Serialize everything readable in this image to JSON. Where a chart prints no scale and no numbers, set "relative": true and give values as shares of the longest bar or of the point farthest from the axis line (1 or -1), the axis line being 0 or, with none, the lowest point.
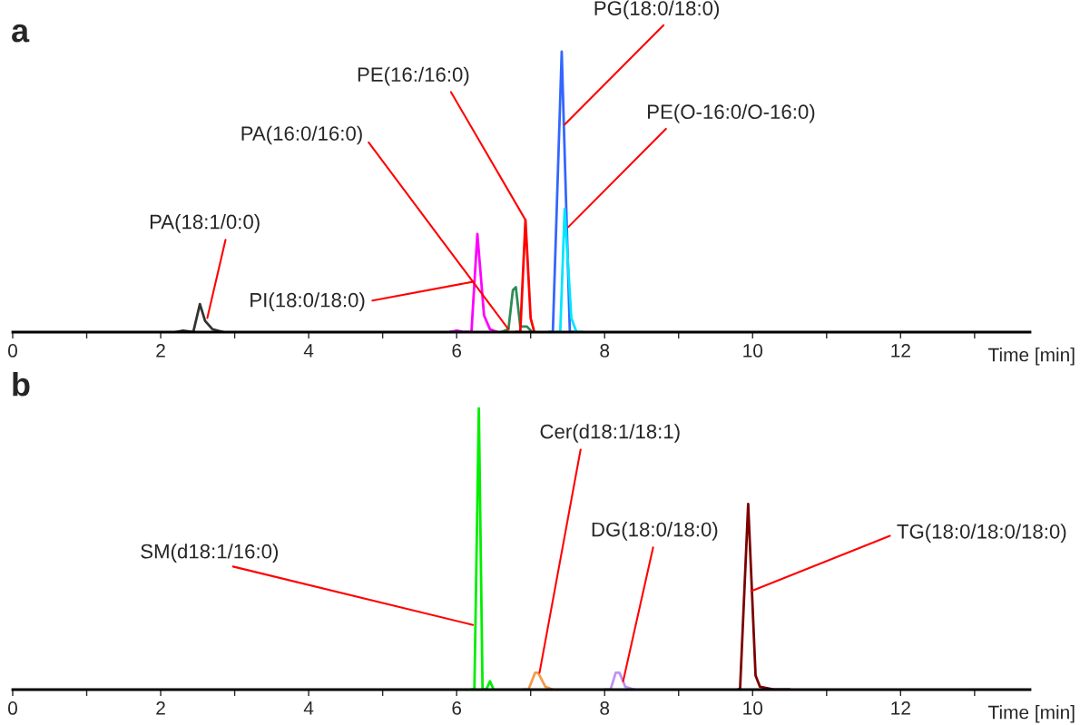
{
  "chart_data": [
    {
      "type": "line",
      "title": "a",
      "xlabel": "Time [min]",
      "relative": true,
      "xlim": [
        0,
        13.75
      ],
      "xticks": [
        0,
        {
          "value": 1,
          "label": null
        },
        2,
        {
          "value": 3,
          "label": null
        },
        4,
        {
          "value": 5,
          "label": null
        },
        6,
        {
          "value": 7,
          "label": null
        },
        8,
        {
          "value": 9,
          "label": null
        },
        10,
        {
          "value": 11,
          "label": null
        },
        12,
        {
          "value": 13,
          "label": null
        }
      ],
      "grid": false,
      "legend": false,
      "marker": "none",
      "line_style": "solid",
      "series": [
        {
          "color": "#333333",
          "x": [
            2.2,
            2.3,
            2.44,
            2.53,
            2.6,
            2.7,
            2.85
          ],
          "values": [
            0,
            0.005,
            0,
            0.1,
            0.04,
            0.01,
            0
          ]
        },
        {
          "color": "#ff00ff",
          "x": [
            5.9,
            6.0,
            6.1,
            6.2,
            6.28,
            6.37,
            6.45,
            6.55
          ],
          "values": [
            0,
            0.005,
            0,
            0,
            0.35,
            0.06,
            0.01,
            0
          ]
        },
        {
          "color": "#2e8b57",
          "x": [
            6.6,
            6.7,
            6.76,
            6.8,
            6.86,
            6.95,
            7.02
          ],
          "values": [
            0,
            0.01,
            0.15,
            0.16,
            0.02,
            0.02,
            0
          ]
        },
        {
          "color": "#ff0000",
          "x": [
            6.8,
            6.86,
            6.93,
            7.0,
            7.05
          ],
          "values": [
            0,
            0,
            0.4,
            0.05,
            0
          ]
        },
        {
          "color": "#3366ff",
          "x": [
            7.25,
            7.3,
            7.42,
            7.53,
            7.6
          ],
          "values": [
            0,
            0,
            1,
            0,
            0
          ]
        },
        {
          "color": "#00e5ff",
          "x": [
            7.35,
            7.4,
            7.46,
            7.55,
            7.62,
            7.7
          ],
          "values": [
            0,
            0,
            0.44,
            0.05,
            0,
            0
          ]
        }
      ],
      "annotations": [
        {
          "text": "PA(18:1/0:0)",
          "x": 2.63,
          "y": 0.05
        },
        {
          "text": "PA(16:0/16:0)",
          "x": 6.7,
          "y": 0.01
        },
        {
          "text": "PI(18:0/18:0)",
          "x": 6.23,
          "y": 0.18
        },
        {
          "text": "PE(16:/16:0)",
          "x": 6.93,
          "y": 0.4
        },
        {
          "text": "PG(18:0/18:0)",
          "x": 7.46,
          "y": 0.74
        },
        {
          "text": "PE(O-16:0/O-16:0)",
          "x": 7.51,
          "y": 0.375
        }
      ]
    },
    {
      "type": "line",
      "title": "b",
      "xlabel": "Time [min]",
      "relative": true,
      "xlim": [
        0,
        13.75
      ],
      "xticks": [
        0,
        {
          "value": 1,
          "label": null
        },
        2,
        {
          "value": 3,
          "label": null
        },
        4,
        {
          "value": 5,
          "label": null
        },
        6,
        {
          "value": 7,
          "label": null
        },
        8,
        {
          "value": 9,
          "label": null
        },
        10,
        {
          "value": 11,
          "label": null
        },
        12,
        {
          "value": 13,
          "label": null
        }
      ],
      "grid": false,
      "legend": false,
      "marker": "none",
      "line_style": "solid",
      "series": [
        {
          "color": "#00ee00",
          "x": [
            6.2,
            6.24,
            6.3,
            6.35,
            6.4,
            6.45,
            6.5
          ],
          "values": [
            0,
            0,
            1,
            0,
            0,
            0.03,
            0
          ]
        },
        {
          "color": "#f39c4a",
          "x": [
            6.9,
            6.97,
            7.06,
            7.1,
            7.2,
            7.3
          ],
          "values": [
            0,
            0,
            0.06,
            0.06,
            0.01,
            0
          ]
        },
        {
          "color": "#bf94f0",
          "x": [
            8.0,
            8.08,
            8.15,
            8.2,
            8.28,
            8.4
          ],
          "values": [
            0,
            0,
            0.06,
            0.06,
            0.01,
            0
          ]
        },
        {
          "color": "#7b0000",
          "x": [
            9.8,
            9.83,
            9.94,
            10.04,
            10.1,
            10.3,
            10.5
          ],
          "values": [
            0,
            0,
            0.66,
            0.05,
            0.01,
            0,
            0
          ]
        }
      ],
      "annotations": [
        {
          "text": "SM(d18:1/16:0)",
          "x": 6.22,
          "y": 0.23
        },
        {
          "text": "Cer(d18:1/18:1)",
          "x": 7.12,
          "y": 0.06
        },
        {
          "text": "DG(18:0/18:0)",
          "x": 8.25,
          "y": 0.03
        },
        {
          "text": "TG(18:0/18:0/18:0)",
          "x": 9.98,
          "y": 0.35
        }
      ]
    }
  ]
}
